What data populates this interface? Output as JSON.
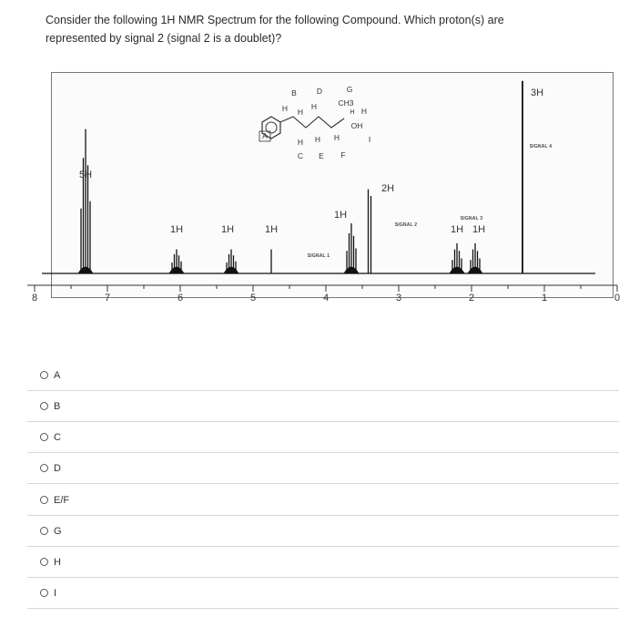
{
  "question": {
    "line1": "Consider the following 1H NMR Spectrum for the following Compound. Which proton(s) are",
    "line2": "represented by signal 2 (signal 2 is a doublet)?"
  },
  "molecule": {
    "ring_label": "A",
    "top_letters": [
      "B",
      "D",
      "G"
    ],
    "top_h": [
      "H",
      "H",
      "H"
    ],
    "ch3": "CH3",
    "h_small": "H",
    "h_right": "H",
    "oh": "OH",
    "i_label": "I",
    "bottom_h": [
      "H",
      "H",
      "H"
    ],
    "bottom_letters": [
      "C",
      "E",
      "F"
    ]
  },
  "chart_data": {
    "type": "line",
    "title": "",
    "xlabel": "",
    "ylabel": "",
    "xlim": [
      8,
      0
    ],
    "x_reversed": true,
    "x_ticks": [
      "8",
      "7",
      "6",
      "5",
      "4",
      "3",
      "2",
      "1",
      "0"
    ],
    "peaks": [
      {
        "ppm": 7.3,
        "height": 0.72,
        "kind": "multiplet"
      },
      {
        "ppm": 6.05,
        "height": 0.12,
        "kind": "multiplet"
      },
      {
        "ppm": 5.3,
        "height": 0.12,
        "kind": "multiplet"
      },
      {
        "ppm": 4.75,
        "height": 0.12,
        "kind": "single"
      },
      {
        "ppm": 3.65,
        "height": 0.25,
        "kind": "multiplet"
      },
      {
        "ppm": 3.4,
        "height": 0.42,
        "kind": "doublet"
      },
      {
        "ppm": 2.2,
        "height": 0.15,
        "kind": "multiplet"
      },
      {
        "ppm": 1.95,
        "height": 0.15,
        "kind": "multiplet"
      },
      {
        "ppm": 1.3,
        "height": 0.96,
        "kind": "singlet"
      }
    ],
    "integrations": [
      {
        "ppm": 7.3,
        "text": "5H"
      },
      {
        "ppm": 6.05,
        "text": "1H"
      },
      {
        "ppm": 5.35,
        "text": "1H"
      },
      {
        "ppm": 4.75,
        "text": "1H"
      },
      {
        "ppm": 3.8,
        "text": "1H"
      },
      {
        "ppm": 3.15,
        "text": "2H"
      },
      {
        "ppm": 2.2,
        "text": "1H"
      },
      {
        "ppm": 1.9,
        "text": "1H"
      },
      {
        "ppm": 1.1,
        "text": "3H"
      }
    ],
    "signal_labels": [
      {
        "ppm": 4.1,
        "text": "SIGNAL 1"
      },
      {
        "ppm": 2.9,
        "text": "SIGNAL 2"
      },
      {
        "ppm": 2.0,
        "text": "SIGNAL 3"
      },
      {
        "ppm": 1.05,
        "text": "SIGNAL 4"
      }
    ]
  },
  "options": [
    {
      "label": "A"
    },
    {
      "label": "B"
    },
    {
      "label": "C"
    },
    {
      "label": "D"
    },
    {
      "label": "E/F"
    },
    {
      "label": "G"
    },
    {
      "label": "H"
    },
    {
      "label": "I"
    }
  ]
}
